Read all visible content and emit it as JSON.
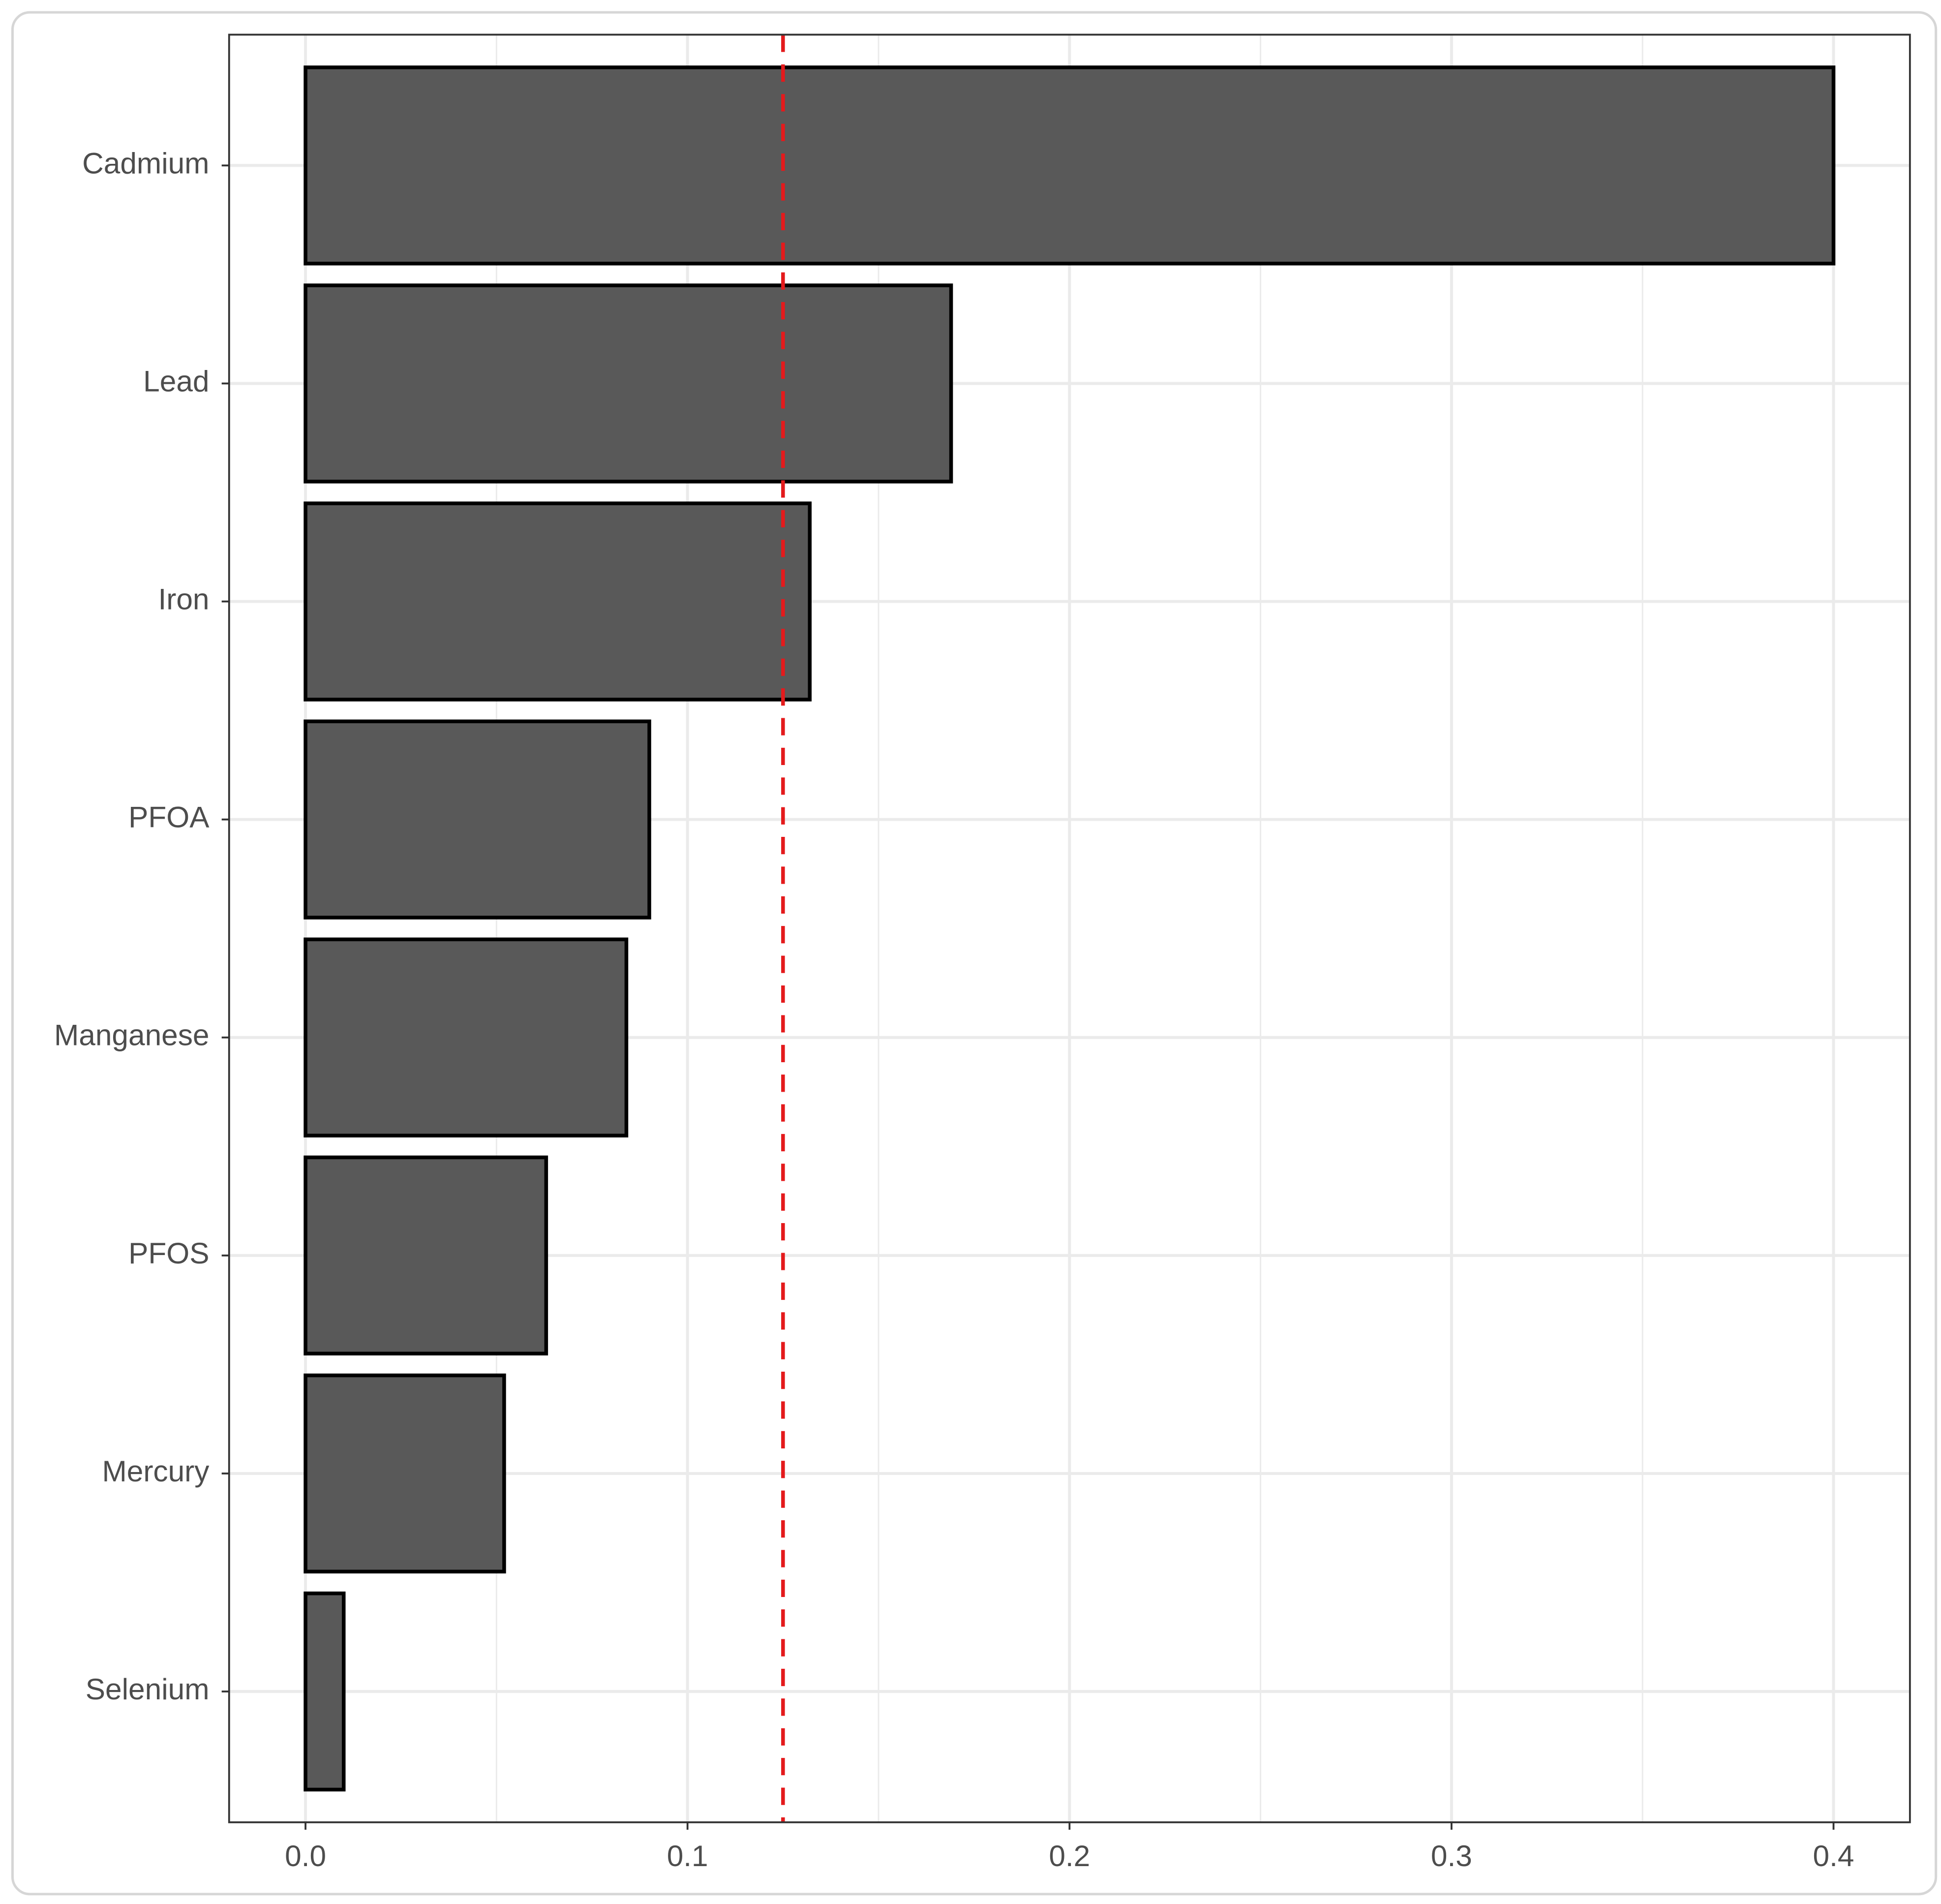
{
  "chart_data": {
    "type": "bar",
    "orientation": "horizontal",
    "categories": [
      "Cadmium",
      "Lead",
      "Iron",
      "PFOA",
      "Manganese",
      "PFOS",
      "Mercury",
      "Selenium"
    ],
    "values": [
      0.4,
      0.169,
      0.132,
      0.09,
      0.084,
      0.063,
      0.052,
      0.01
    ],
    "color": "#595959",
    "xlim": [
      -0.02,
      0.42
    ],
    "xticks": [
      {
        "value": 0,
        "label": "0.0"
      },
      0.1,
      0.2,
      0.3,
      0.4
    ],
    "xminor": [
      0.05,
      0.15,
      0.25,
      0.35
    ],
    "grid": true,
    "reference_line": {
      "value": 0.125,
      "color": "#e41a1c"
    }
  }
}
